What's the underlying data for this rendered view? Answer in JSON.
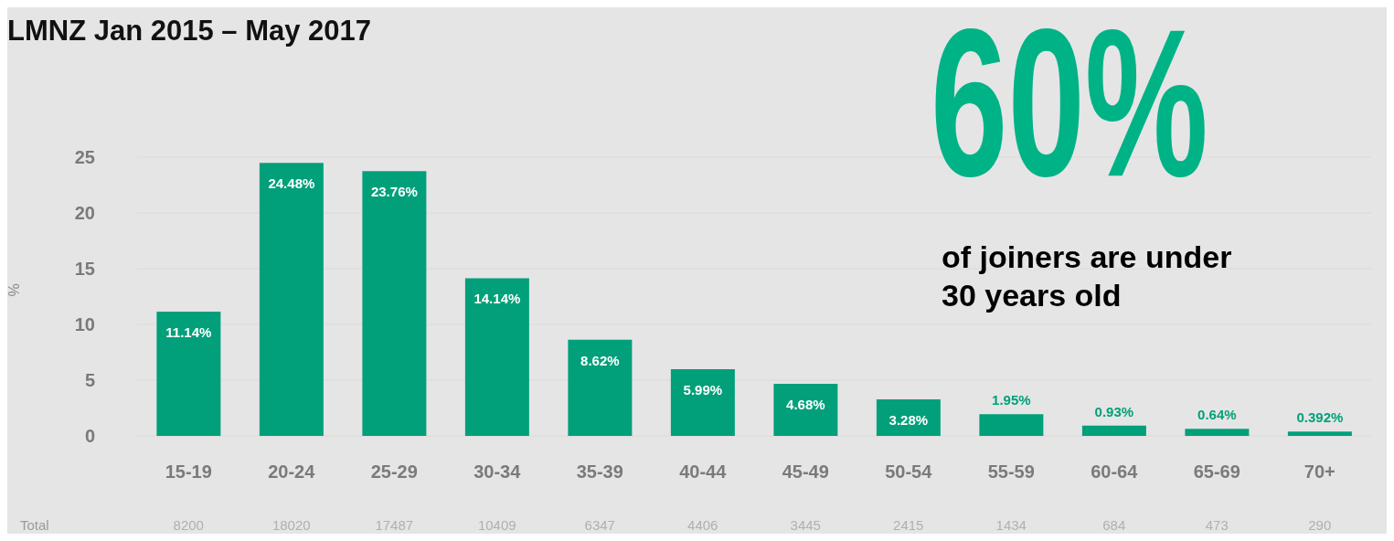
{
  "chart_data": {
    "type": "bar",
    "title": "LMNZ Jan 2015 – May 2017",
    "ylabel": "%",
    "categories": [
      "15-19",
      "20-24",
      "25-29",
      "30-34",
      "35-39",
      "40-44",
      "45-49",
      "50-54",
      "55-59",
      "60-64",
      "65-69",
      "70+"
    ],
    "values": [
      11.14,
      24.48,
      23.76,
      14.14,
      8.62,
      5.99,
      4.68,
      3.28,
      1.95,
      0.93,
      0.64,
      0.392
    ],
    "value_labels": [
      "11.14%",
      "24.48%",
      "23.76%",
      "14.14%",
      "8.62%",
      "5.99%",
      "4.68%",
      "3.28%",
      "1.95%",
      "0.93%",
      "0.64%",
      "0.392%"
    ],
    "color": "#02a07a",
    "ylim": [
      0,
      25
    ],
    "yticks": [
      0,
      5,
      10,
      15,
      20,
      25
    ],
    "grid": "y",
    "annotations": [
      "60%",
      "of joiners are under 30 years old",
      "Total",
      "8200",
      "18020",
      "17487",
      "10409",
      "6347",
      "4406",
      "3445",
      "2415",
      "1434",
      "684",
      "473",
      "290"
    ]
  }
}
